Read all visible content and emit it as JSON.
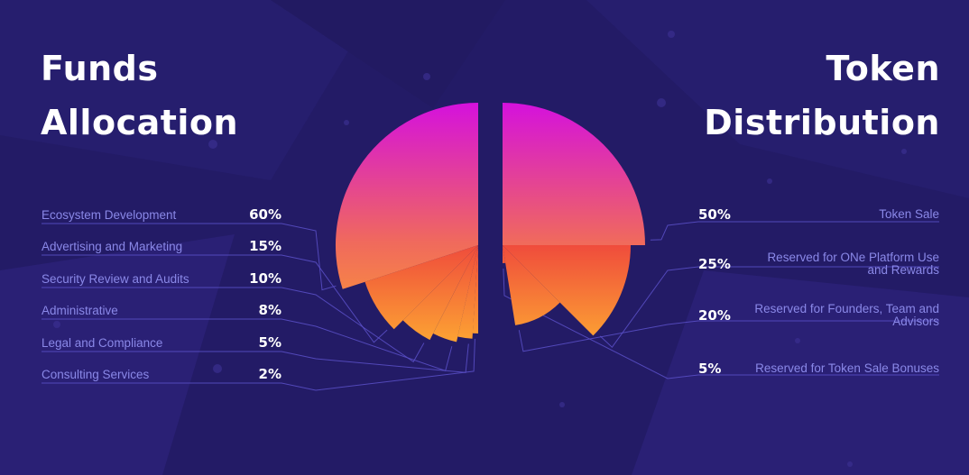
{
  "left_title": {
    "line1": "Funds",
    "line2": "Allocation"
  },
  "right_title": {
    "line1": "Token",
    "line2": "Distribution"
  },
  "colors": {
    "background": "#231b66",
    "label": "#8a88e8",
    "value": "#ffffff",
    "connector": "#5a50c8",
    "gradient_top": "#d40fe0",
    "gradient_mid": "#f06a5c",
    "gradient_bottom": "#ffa82a"
  },
  "chart_data": [
    {
      "type": "pie",
      "title": "Funds Allocation",
      "categories": [
        "Ecosystem Development",
        "Advertising and Marketing",
        "Security Review and Audits",
        "Administrative",
        "Legal and Compliance",
        "Consulting Services"
      ],
      "values": [
        60,
        15,
        10,
        8,
        5,
        2
      ],
      "value_labels": [
        "60%",
        "15%",
        "10%",
        "8%",
        "5%",
        "2%"
      ],
      "legend_placement": "left"
    },
    {
      "type": "pie",
      "title": "Token Distribution",
      "categories": [
        "Token Sale",
        "Reserved for ONe Platform Use and Rewards",
        "Reserved for Founders, Team and Advisors",
        "Reserved for Token Sale Bonuses"
      ],
      "values": [
        50,
        25,
        20,
        5
      ],
      "value_labels": [
        "50%",
        "25%",
        "20%",
        "5%"
      ],
      "legend_placement": "right"
    }
  ]
}
